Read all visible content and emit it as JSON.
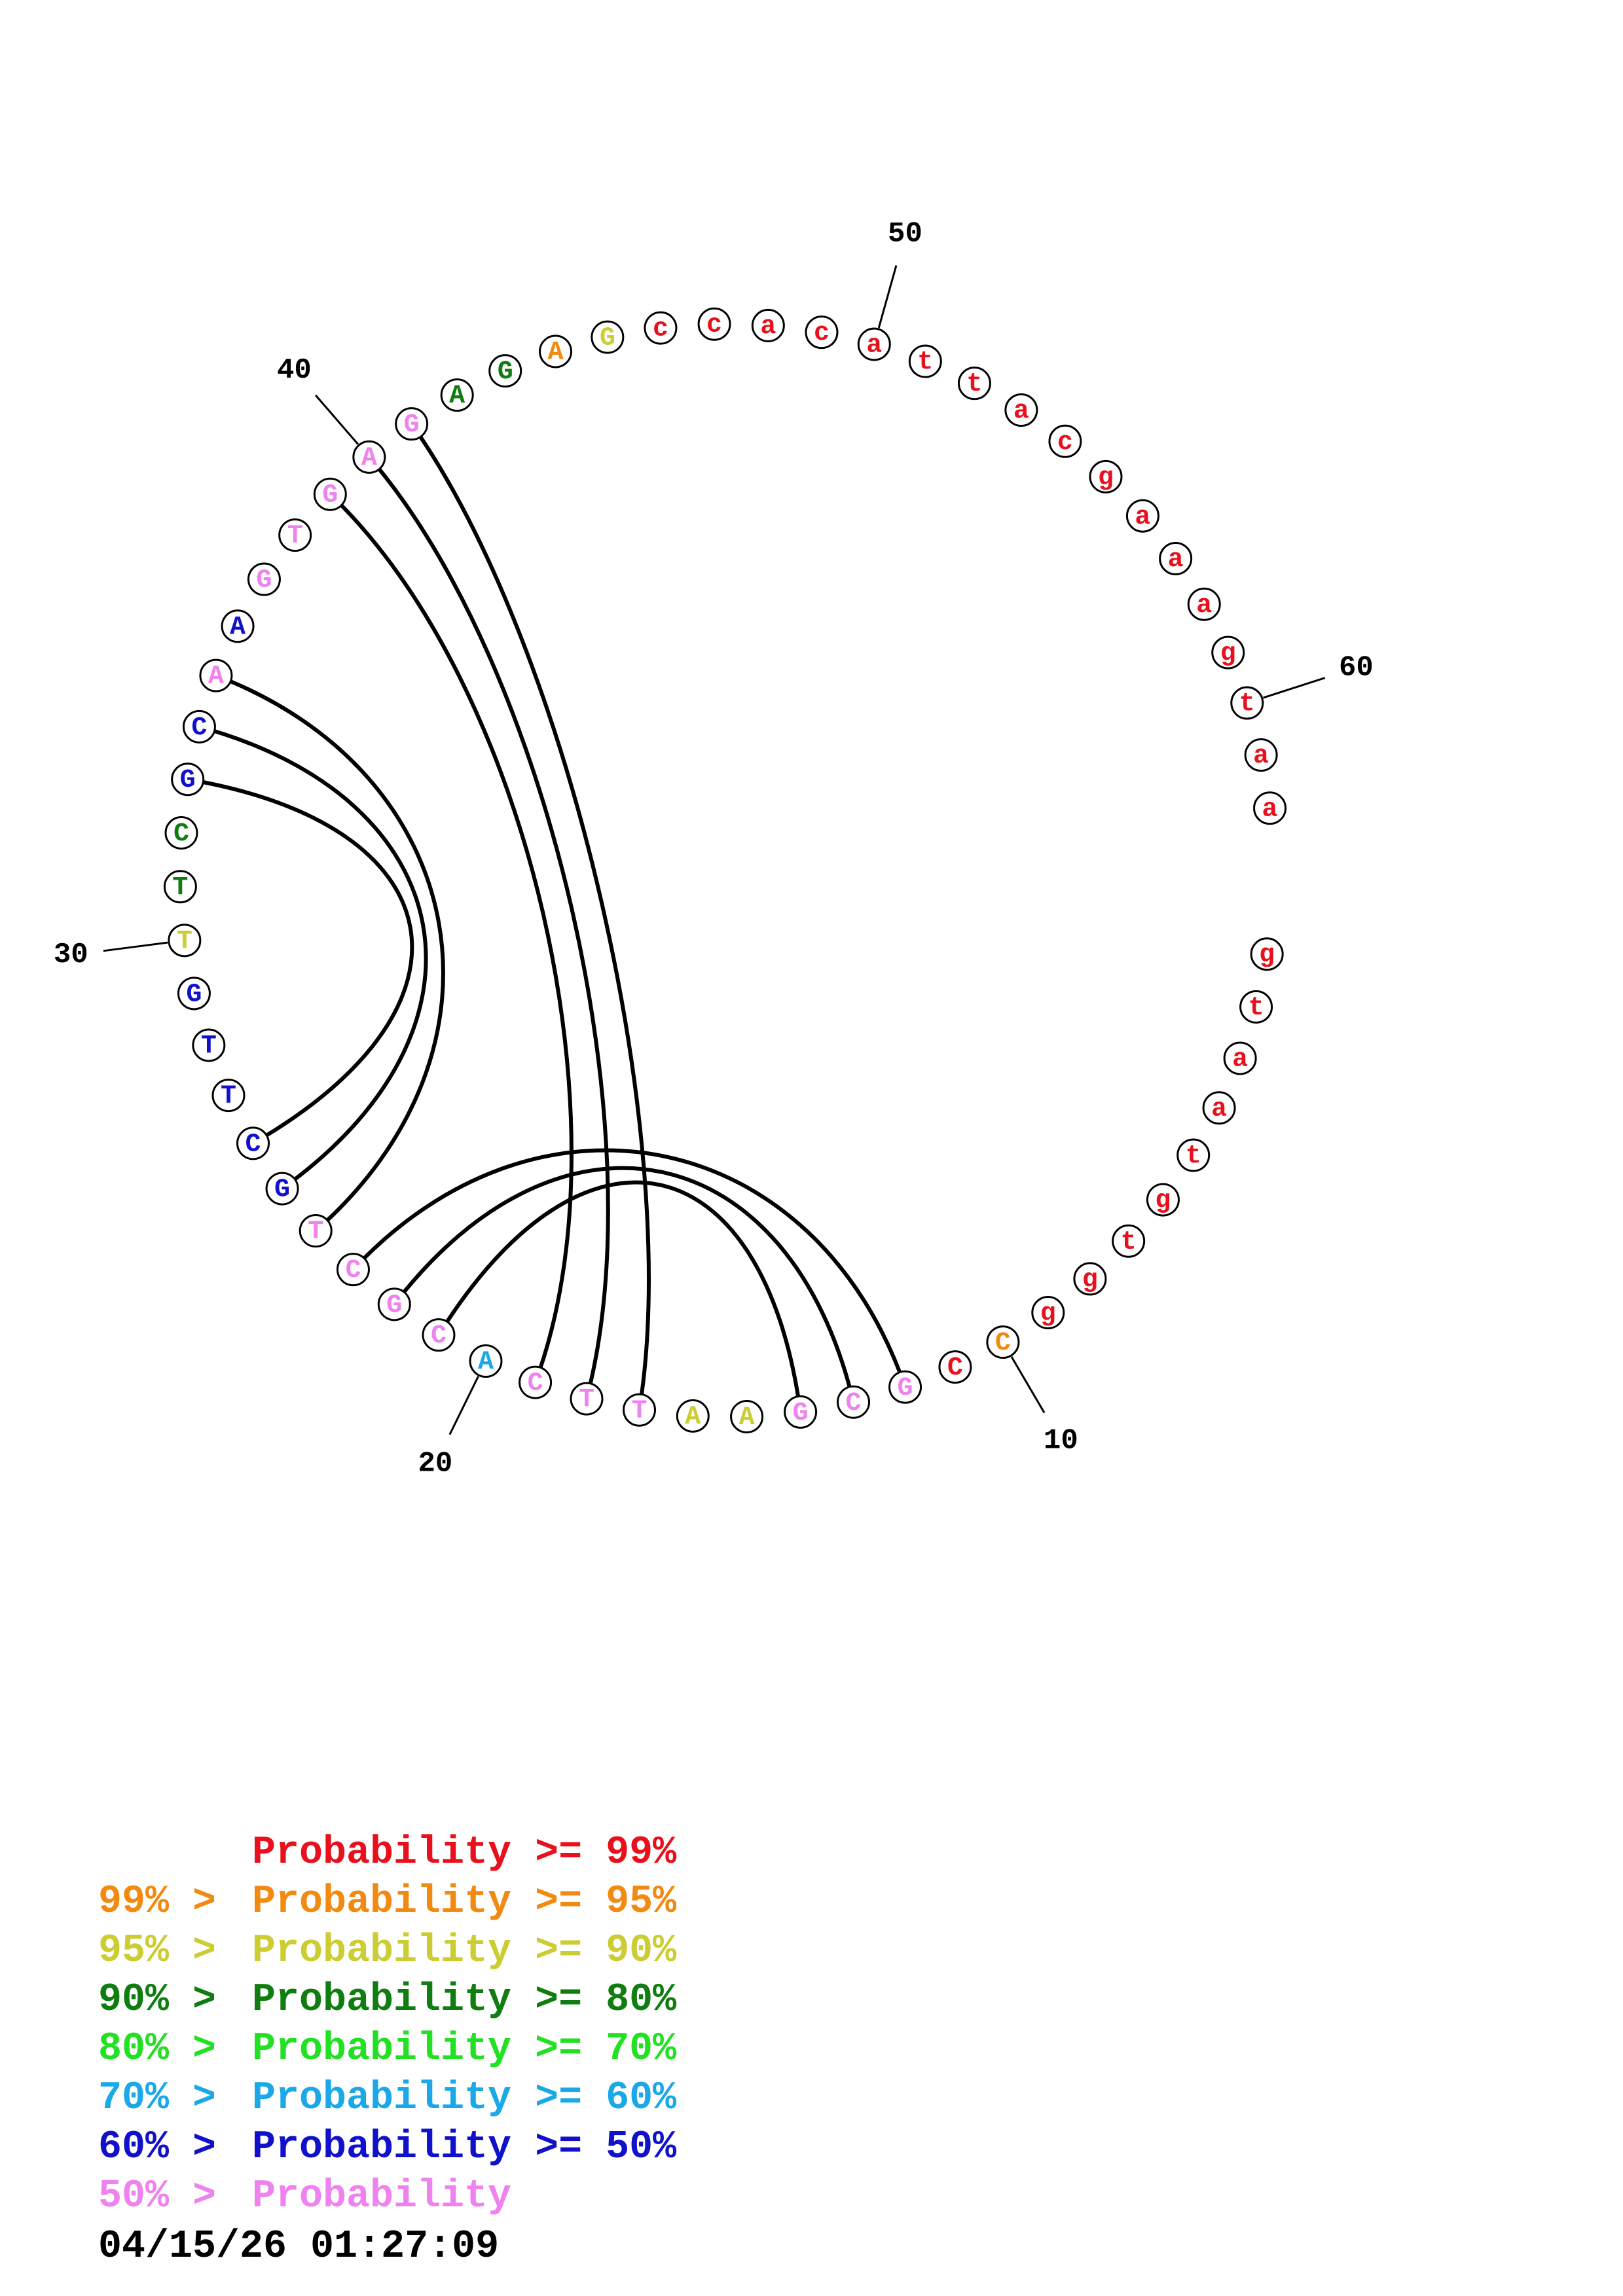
{
  "colors": {
    "red": "#e8101c",
    "orange": "#f28a12",
    "yellow": "#cccc33",
    "dark_green": "#0f7d0f",
    "green": "#22e022",
    "cyan": "#1aa8e8",
    "blue": "#1111cc",
    "pink": "#ee82ee",
    "black": "#000000"
  },
  "nucleotides": [
    {
      "i": 1,
      "b": "g",
      "c": "red"
    },
    {
      "i": 2,
      "b": "t",
      "c": "red"
    },
    {
      "i": 3,
      "b": "a",
      "c": "red"
    },
    {
      "i": 4,
      "b": "a",
      "c": "red"
    },
    {
      "i": 5,
      "b": "t",
      "c": "red"
    },
    {
      "i": 6,
      "b": "g",
      "c": "red"
    },
    {
      "i": 7,
      "b": "t",
      "c": "red"
    },
    {
      "i": 8,
      "b": "g",
      "c": "red"
    },
    {
      "i": 9,
      "b": "g",
      "c": "red"
    },
    {
      "i": 10,
      "b": "C",
      "c": "orange"
    },
    {
      "i": 11,
      "b": "C",
      "c": "red"
    },
    {
      "i": 12,
      "b": "G",
      "c": "pink"
    },
    {
      "i": 13,
      "b": "C",
      "c": "pink"
    },
    {
      "i": 14,
      "b": "G",
      "c": "pink"
    },
    {
      "i": 15,
      "b": "A",
      "c": "yellow"
    },
    {
      "i": 16,
      "b": "A",
      "c": "yellow"
    },
    {
      "i": 17,
      "b": "T",
      "c": "pink"
    },
    {
      "i": 18,
      "b": "T",
      "c": "pink"
    },
    {
      "i": 19,
      "b": "C",
      "c": "pink"
    },
    {
      "i": 20,
      "b": "A",
      "c": "cyan"
    },
    {
      "i": 21,
      "b": "C",
      "c": "pink"
    },
    {
      "i": 22,
      "b": "G",
      "c": "pink"
    },
    {
      "i": 23,
      "b": "C",
      "c": "pink"
    },
    {
      "i": 24,
      "b": "T",
      "c": "pink"
    },
    {
      "i": 25,
      "b": "G",
      "c": "blue"
    },
    {
      "i": 26,
      "b": "C",
      "c": "blue"
    },
    {
      "i": 27,
      "b": "T",
      "c": "blue"
    },
    {
      "i": 28,
      "b": "T",
      "c": "blue"
    },
    {
      "i": 29,
      "b": "G",
      "c": "blue"
    },
    {
      "i": 30,
      "b": "T",
      "c": "yellow"
    },
    {
      "i": 31,
      "b": "T",
      "c": "dark_green"
    },
    {
      "i": 32,
      "b": "C",
      "c": "dark_green"
    },
    {
      "i": 33,
      "b": "G",
      "c": "blue"
    },
    {
      "i": 34,
      "b": "C",
      "c": "blue"
    },
    {
      "i": 35,
      "b": "A",
      "c": "pink"
    },
    {
      "i": 36,
      "b": "A",
      "c": "blue"
    },
    {
      "i": 37,
      "b": "G",
      "c": "pink"
    },
    {
      "i": 38,
      "b": "T",
      "c": "pink"
    },
    {
      "i": 39,
      "b": "G",
      "c": "pink"
    },
    {
      "i": 40,
      "b": "A",
      "c": "pink"
    },
    {
      "i": 41,
      "b": "G",
      "c": "pink"
    },
    {
      "i": 42,
      "b": "A",
      "c": "dark_green"
    },
    {
      "i": 43,
      "b": "G",
      "c": "dark_green"
    },
    {
      "i": 44,
      "b": "A",
      "c": "orange"
    },
    {
      "i": 45,
      "b": "G",
      "c": "yellow"
    },
    {
      "i": 46,
      "b": "c",
      "c": "red"
    },
    {
      "i": 47,
      "b": "c",
      "c": "red"
    },
    {
      "i": 48,
      "b": "a",
      "c": "red"
    },
    {
      "i": 49,
      "b": "c",
      "c": "red"
    },
    {
      "i": 50,
      "b": "a",
      "c": "red"
    },
    {
      "i": 51,
      "b": "t",
      "c": "red"
    },
    {
      "i": 52,
      "b": "t",
      "c": "red"
    },
    {
      "i": 53,
      "b": "a",
      "c": "red"
    },
    {
      "i": 54,
      "b": "c",
      "c": "red"
    },
    {
      "i": 55,
      "b": "g",
      "c": "red"
    },
    {
      "i": 56,
      "b": "a",
      "c": "red"
    },
    {
      "i": 57,
      "b": "a",
      "c": "red"
    },
    {
      "i": 58,
      "b": "a",
      "c": "red"
    },
    {
      "i": 59,
      "b": "g",
      "c": "red"
    },
    {
      "i": 60,
      "b": "t",
      "c": "red"
    },
    {
      "i": 61,
      "b": "a",
      "c": "red"
    },
    {
      "i": 62,
      "b": "a",
      "c": "red"
    }
  ],
  "pairs": [
    [
      12,
      23
    ],
    [
      13,
      22
    ],
    [
      14,
      21
    ],
    [
      17,
      41
    ],
    [
      18,
      40
    ],
    [
      19,
      39
    ],
    [
      24,
      35
    ],
    [
      25,
      34
    ],
    [
      26,
      33
    ]
  ],
  "index_labels": [
    {
      "i": 10,
      "text": "10"
    },
    {
      "i": 20,
      "text": "20"
    },
    {
      "i": 30,
      "text": "30"
    },
    {
      "i": 40,
      "text": "40"
    },
    {
      "i": 50,
      "text": "50"
    },
    {
      "i": 60,
      "text": "60"
    }
  ],
  "legend": [
    {
      "prefix": "",
      "text": "Probability >= 99%",
      "c": "red"
    },
    {
      "prefix": "99% > ",
      "text": "Probability >= 95%",
      "c": "orange"
    },
    {
      "prefix": "95% > ",
      "text": "Probability >= 90%",
      "c": "yellow"
    },
    {
      "prefix": "90% > ",
      "text": "Probability >= 80%",
      "c": "dark_green"
    },
    {
      "prefix": "80% > ",
      "text": "Probability >= 70%",
      "c": "green"
    },
    {
      "prefix": "70% > ",
      "text": "Probability >= 60%",
      "c": "cyan"
    },
    {
      "prefix": "60% > ",
      "text": "Probability >= 50%",
      "c": "blue"
    },
    {
      "prefix": "50% > ",
      "text": "Probability",
      "c": "pink"
    }
  ],
  "timestamp": "04/15/26 01:27:09"
}
